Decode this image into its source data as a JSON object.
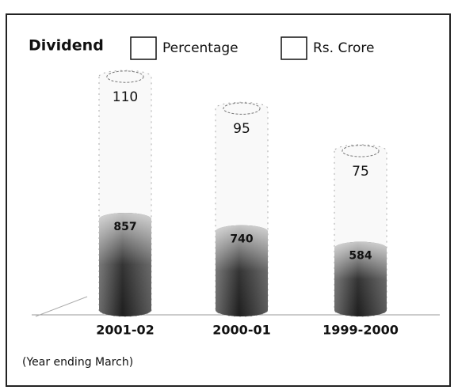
{
  "chart_data": {
    "type": "bar",
    "title": "Dividend",
    "categories": [
      "2001-02",
      "2000-01",
      "1999-2000"
    ],
    "series": [
      {
        "name": "Percentage",
        "color": "#f4f4f4",
        "values": [
          110,
          95,
          75
        ]
      },
      {
        "name": "Rs. Crore",
        "color": "#3a3a3a",
        "values": [
          857,
          740,
          584
        ]
      }
    ],
    "note": "(Year ending March)"
  }
}
